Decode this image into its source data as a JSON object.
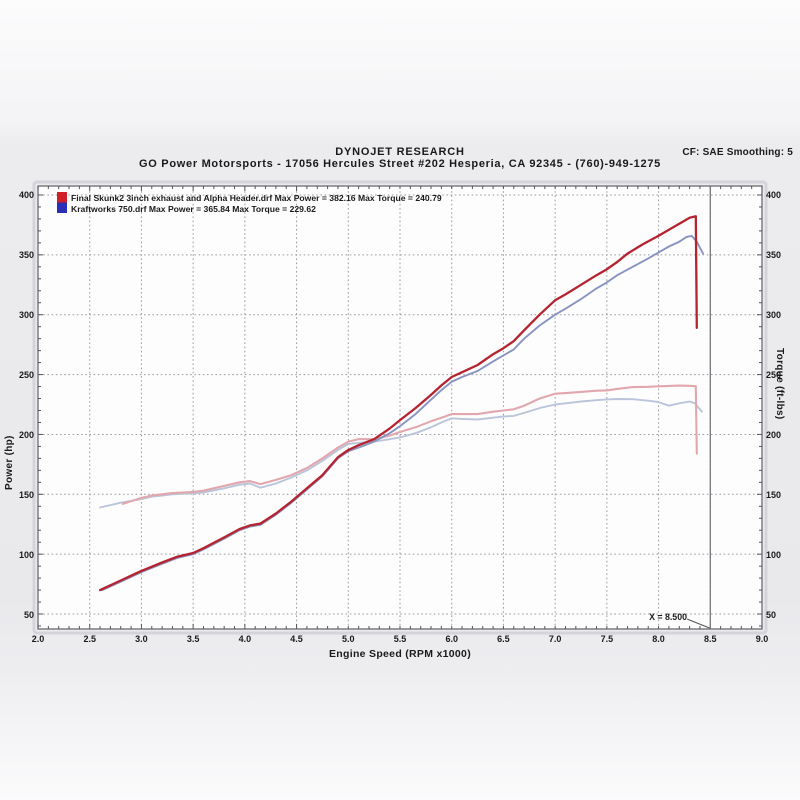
{
  "header": {
    "title": "DYNOJET RESEARCH",
    "subtitle": "GO Power Motorsports - 17056 Hercules Street #202 Hesperia, CA 92345 - (760)-949-1275",
    "corner": "CF: SAE  Smoothing: 5"
  },
  "legend": {
    "line1": "Final Skunk2 3inch exhaust and Alpha Header.drf Max Power = 382.16 Max Torque = 240.79",
    "line2": "Kraftworks 750.drf Max Power = 365.84 Max Torque = 229.62",
    "swatch1_color": "#d01f28",
    "swatch2_color": "#2b2fb5"
  },
  "axes": {
    "x_label": "Engine Speed (RPM x1000)",
    "y_left_label": "Power (hp)",
    "y_right_label": "Torque (ft-lbs)",
    "x_ticks": [
      "2.0",
      "2.5",
      "3.0",
      "3.5",
      "4.0",
      "4.5",
      "5.0",
      "5.5",
      "6.0",
      "6.5",
      "7.0",
      "7.5",
      "8.0",
      "8.5",
      "9.0"
    ],
    "y_ticks": [
      "400",
      "350",
      "300",
      "250",
      "200",
      "150",
      "100",
      "50"
    ]
  },
  "cursor": {
    "label": "X = 8.500",
    "x": 8.5
  },
  "chart_data": {
    "type": "line",
    "xlabel": "Engine Speed (RPM x1000)",
    "ylabel_left": "Power (hp)",
    "ylabel_right": "Torque (ft-lbs)",
    "xlim": [
      2.0,
      9.0
    ],
    "ylim": [
      50,
      400
    ],
    "grid": "dotted",
    "legend_position": "top-left",
    "colors": {
      "grid": "#9a9aa0",
      "frame": "#5f5f66",
      "cursor": "#77777d",
      "plot_bg": "#fdfdfe"
    },
    "series": [
      {
        "id": "torque-kraftworks",
        "name": "Kraftworks 750.drf Torque",
        "color": "#bac5da",
        "width": 1.9,
        "points": [
          [
            2.6,
            139
          ],
          [
            2.8,
            143
          ],
          [
            3.0,
            146
          ],
          [
            3.1,
            148
          ],
          [
            3.2,
            149
          ],
          [
            3.3,
            150
          ],
          [
            3.4,
            150.5
          ],
          [
            3.5,
            150.8
          ],
          [
            3.6,
            151.5
          ],
          [
            3.8,
            155
          ],
          [
            3.95,
            158
          ],
          [
            4.05,
            159
          ],
          [
            4.15,
            155.5
          ],
          [
            4.3,
            159
          ],
          [
            4.45,
            164
          ],
          [
            4.6,
            170
          ],
          [
            4.75,
            178
          ],
          [
            4.9,
            187
          ],
          [
            5.0,
            192
          ],
          [
            5.1,
            193
          ],
          [
            5.25,
            194
          ],
          [
            5.4,
            196
          ],
          [
            5.5,
            197.5
          ],
          [
            5.65,
            201
          ],
          [
            5.8,
            206
          ],
          [
            5.9,
            210
          ],
          [
            6.0,
            213.5
          ],
          [
            6.1,
            213
          ],
          [
            6.25,
            212.5
          ],
          [
            6.4,
            214
          ],
          [
            6.5,
            215
          ],
          [
            6.6,
            215.5
          ],
          [
            6.7,
            218
          ],
          [
            6.85,
            222
          ],
          [
            7.0,
            225
          ],
          [
            7.1,
            226
          ],
          [
            7.25,
            227.5
          ],
          [
            7.4,
            228.6
          ],
          [
            7.5,
            229.3
          ],
          [
            7.6,
            229.6
          ],
          [
            7.75,
            229.4
          ],
          [
            7.9,
            228.2
          ],
          [
            8.0,
            227
          ],
          [
            8.1,
            224
          ],
          [
            8.2,
            226
          ],
          [
            8.3,
            227.5
          ],
          [
            8.35,
            226
          ],
          [
            8.42,
            219
          ]
        ]
      },
      {
        "id": "torque-skunk2",
        "name": "Final Skunk2 3inch exhaust and Alpha Header.drf Torque",
        "color": "#e2a7ae",
        "width": 2.1,
        "points": [
          [
            2.82,
            142
          ],
          [
            3.0,
            147
          ],
          [
            3.1,
            149
          ],
          [
            3.2,
            150
          ],
          [
            3.3,
            151
          ],
          [
            3.4,
            151.5
          ],
          [
            3.5,
            152
          ],
          [
            3.6,
            153
          ],
          [
            3.8,
            157
          ],
          [
            3.95,
            160
          ],
          [
            4.05,
            161
          ],
          [
            4.15,
            158.5
          ],
          [
            4.3,
            162
          ],
          [
            4.45,
            166
          ],
          [
            4.6,
            172
          ],
          [
            4.75,
            180
          ],
          [
            4.9,
            189
          ],
          [
            5.0,
            194
          ],
          [
            5.1,
            196
          ],
          [
            5.25,
            196
          ],
          [
            5.4,
            199
          ],
          [
            5.5,
            202
          ],
          [
            5.65,
            206
          ],
          [
            5.8,
            211
          ],
          [
            5.9,
            214
          ],
          [
            6.0,
            217
          ],
          [
            6.1,
            217
          ],
          [
            6.25,
            217
          ],
          [
            6.4,
            219
          ],
          [
            6.5,
            220
          ],
          [
            6.6,
            221
          ],
          [
            6.7,
            224
          ],
          [
            6.85,
            230
          ],
          [
            7.0,
            234
          ],
          [
            7.1,
            234.5
          ],
          [
            7.25,
            235.5
          ],
          [
            7.4,
            236.5
          ],
          [
            7.5,
            236.8
          ],
          [
            7.6,
            238
          ],
          [
            7.75,
            239.5
          ],
          [
            7.9,
            239.8
          ],
          [
            8.0,
            240.2
          ],
          [
            8.1,
            240.5
          ],
          [
            8.2,
            240.8
          ],
          [
            8.3,
            240.6
          ],
          [
            8.36,
            240.3
          ],
          [
            8.37,
            184
          ]
        ]
      },
      {
        "id": "power-kraftworks",
        "name": "Kraftworks 750.drf Power",
        "color": "#8893c2",
        "width": 1.9,
        "points": [
          [
            2.62,
            70
          ],
          [
            2.8,
            77
          ],
          [
            3.0,
            85
          ],
          [
            3.2,
            92
          ],
          [
            3.35,
            97
          ],
          [
            3.5,
            100
          ],
          [
            3.6,
            104
          ],
          [
            3.8,
            113
          ],
          [
            3.95,
            120
          ],
          [
            4.05,
            123
          ],
          [
            4.15,
            124.5
          ],
          [
            4.3,
            133
          ],
          [
            4.45,
            143
          ],
          [
            4.6,
            154
          ],
          [
            4.75,
            165
          ],
          [
            4.9,
            180
          ],
          [
            5.0,
            186
          ],
          [
            5.1,
            189
          ],
          [
            5.25,
            194
          ],
          [
            5.4,
            201
          ],
          [
            5.5,
            207
          ],
          [
            5.65,
            217
          ],
          [
            5.8,
            229
          ],
          [
            5.9,
            237
          ],
          [
            6.0,
            244
          ],
          [
            6.1,
            248
          ],
          [
            6.25,
            253
          ],
          [
            6.4,
            261
          ],
          [
            6.5,
            266
          ],
          [
            6.6,
            271
          ],
          [
            6.7,
            280
          ],
          [
            6.85,
            291
          ],
          [
            7.0,
            300
          ],
          [
            7.1,
            305
          ],
          [
            7.25,
            313
          ],
          [
            7.4,
            322
          ],
          [
            7.5,
            327
          ],
          [
            7.6,
            333
          ],
          [
            7.75,
            340
          ],
          [
            7.9,
            347
          ],
          [
            8.0,
            352
          ],
          [
            8.1,
            357
          ],
          [
            8.2,
            361
          ],
          [
            8.27,
            365
          ],
          [
            8.32,
            365.8
          ],
          [
            8.37,
            361
          ],
          [
            8.43,
            351
          ]
        ]
      },
      {
        "id": "power-skunk2",
        "name": "Final Skunk2 3inch exhaust and Alpha Header.drf Power",
        "color": "#b4232e",
        "width": 2.3,
        "points": [
          [
            2.6,
            70
          ],
          [
            2.8,
            78
          ],
          [
            3.0,
            86
          ],
          [
            3.2,
            93
          ],
          [
            3.35,
            98
          ],
          [
            3.5,
            101
          ],
          [
            3.6,
            105
          ],
          [
            3.8,
            114
          ],
          [
            3.95,
            121
          ],
          [
            4.05,
            124
          ],
          [
            4.15,
            125.5
          ],
          [
            4.3,
            134
          ],
          [
            4.45,
            144
          ],
          [
            4.6,
            155
          ],
          [
            4.75,
            166
          ],
          [
            4.9,
            181
          ],
          [
            5.0,
            187
          ],
          [
            5.1,
            191
          ],
          [
            5.25,
            196
          ],
          [
            5.4,
            205
          ],
          [
            5.5,
            212
          ],
          [
            5.65,
            222
          ],
          [
            5.8,
            233
          ],
          [
            5.9,
            241
          ],
          [
            6.0,
            248
          ],
          [
            6.1,
            252
          ],
          [
            6.25,
            258
          ],
          [
            6.4,
            267
          ],
          [
            6.5,
            272
          ],
          [
            6.6,
            278
          ],
          [
            6.7,
            287
          ],
          [
            6.85,
            300
          ],
          [
            7.0,
            312
          ],
          [
            7.1,
            317
          ],
          [
            7.25,
            325
          ],
          [
            7.4,
            333
          ],
          [
            7.5,
            338
          ],
          [
            7.6,
            344
          ],
          [
            7.7,
            351
          ],
          [
            7.85,
            359
          ],
          [
            8.0,
            366
          ],
          [
            8.1,
            371
          ],
          [
            8.2,
            376
          ],
          [
            8.3,
            381
          ],
          [
            8.36,
            382.2
          ],
          [
            8.37,
            289
          ]
        ]
      }
    ]
  }
}
